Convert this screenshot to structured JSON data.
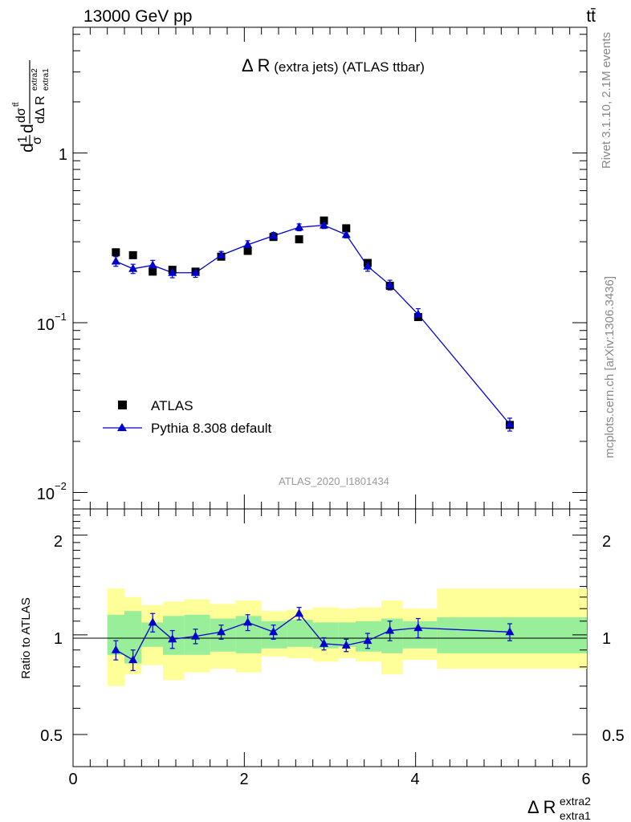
{
  "header": {
    "energy_label": "13000 GeV pp",
    "process_label": "tt̄"
  },
  "side_text": {
    "rivet": "Rivet 3.1.10,  2.1M events",
    "mcplots": "mcplots.cern.ch [arXiv:1306.3436]"
  },
  "analysis_id": "ATLAS_2020_I1801434",
  "upper_tick_labels": [
    "1",
    "10",
    "−1",
    "10",
    "−2"
  ],
  "lower_tick_labels": [
    "2",
    "1",
    "0.5",
    "2",
    "1",
    "0.5"
  ],
  "x_tick_labels": [
    "0",
    "2",
    "4",
    "6"
  ],
  "colors": {
    "data": "#000000",
    "mc": "#0000cc",
    "band_inner": "#99ee99",
    "band_outer": "#ffff99"
  },
  "chart_data": [
    {
      "type": "scatter",
      "title": "Δ R (extra jets) (ATLAS ttbar)",
      "ylabel": "(1/σ) dσ/dΔR_extra1^extra2",
      "xlim": [
        0,
        6
      ],
      "ylim": [
        0.008,
        5.5
      ],
      "yscale": "log",
      "legend_position": "middle-left",
      "series": [
        {
          "name": "ATLAS",
          "marker": "square",
          "x": [
            0.5,
            0.7,
            0.93,
            1.16,
            1.43,
            1.73,
            2.04,
            2.34,
            2.64,
            2.93,
            3.19,
            3.44,
            3.7,
            4.03,
            5.1
          ],
          "y": [
            0.26,
            0.25,
            0.2,
            0.205,
            0.2,
            0.245,
            0.265,
            0.32,
            0.31,
            0.4,
            0.36,
            0.225,
            0.165,
            0.108,
            0.025
          ]
        },
        {
          "name": "Pythia 8.308 default",
          "marker": "triangle",
          "x": [
            0.5,
            0.7,
            0.93,
            1.16,
            1.43,
            1.73,
            2.04,
            2.34,
            2.64,
            2.93,
            3.19,
            3.44,
            3.7,
            4.03,
            5.1
          ],
          "y": [
            0.23,
            0.208,
            0.218,
            0.197,
            0.197,
            0.25,
            0.288,
            0.325,
            0.365,
            0.375,
            0.33,
            0.215,
            0.167,
            0.112,
            0.0252
          ],
          "yerr": [
            0.015,
            0.013,
            0.015,
            0.013,
            0.012,
            0.013,
            0.016,
            0.015,
            0.017,
            0.016,
            0.014,
            0.014,
            0.011,
            0.009,
            0.0022
          ]
        }
      ]
    },
    {
      "type": "line",
      "xlabel": "Δ R_extra1^extra2",
      "ylabel": "Ratio to ATLAS",
      "xlim": [
        0,
        6
      ],
      "ylim": [
        0.4,
        2.4
      ],
      "yscale": "log",
      "reference_line": 1,
      "bins": [
        0.4,
        0.6,
        0.8,
        1.05,
        1.3,
        1.6,
        1.9,
        2.2,
        2.5,
        2.8,
        3.1,
        3.3,
        3.6,
        3.85,
        4.25,
        6.0
      ],
      "band_inner_lo": [
        0.87,
        0.82,
        0.92,
        0.87,
        0.87,
        0.89,
        0.88,
        0.91,
        0.92,
        0.91,
        0.92,
        0.89,
        0.88,
        0.91,
        0.88
      ],
      "band_inner_hi": [
        1.15,
        1.18,
        1.09,
        1.14,
        1.15,
        1.12,
        1.14,
        1.1,
        1.11,
        1.09,
        1.09,
        1.1,
        1.12,
        1.1,
        1.13
      ],
      "band_outer_lo": [
        0.7,
        0.76,
        0.81,
        0.73,
        0.77,
        0.79,
        0.77,
        0.86,
        0.85,
        0.83,
        0.85,
        0.83,
        0.76,
        0.84,
        0.79
      ],
      "band_outer_hi": [
        1.38,
        1.3,
        1.23,
        1.26,
        1.28,
        1.24,
        1.27,
        1.18,
        1.19,
        1.21,
        1.2,
        1.21,
        1.27,
        1.2,
        1.38
      ],
      "series": [
        {
          "name": "Pythia 8.308 default",
          "x": [
            0.5,
            0.7,
            0.93,
            1.16,
            1.43,
            1.73,
            2.04,
            2.34,
            2.64,
            2.93,
            3.19,
            3.44,
            3.7,
            4.03,
            5.1
          ],
          "y": [
            0.9,
            0.84,
            1.09,
            0.97,
            0.99,
            1.02,
            1.09,
            1.02,
            1.16,
            0.94,
            0.93,
            0.96,
            1.03,
            1.05,
            1.02
          ],
          "yerr": [
            0.06,
            0.06,
            0.07,
            0.06,
            0.05,
            0.05,
            0.06,
            0.05,
            0.05,
            0.04,
            0.04,
            0.05,
            0.07,
            0.07,
            0.06
          ]
        }
      ]
    }
  ]
}
